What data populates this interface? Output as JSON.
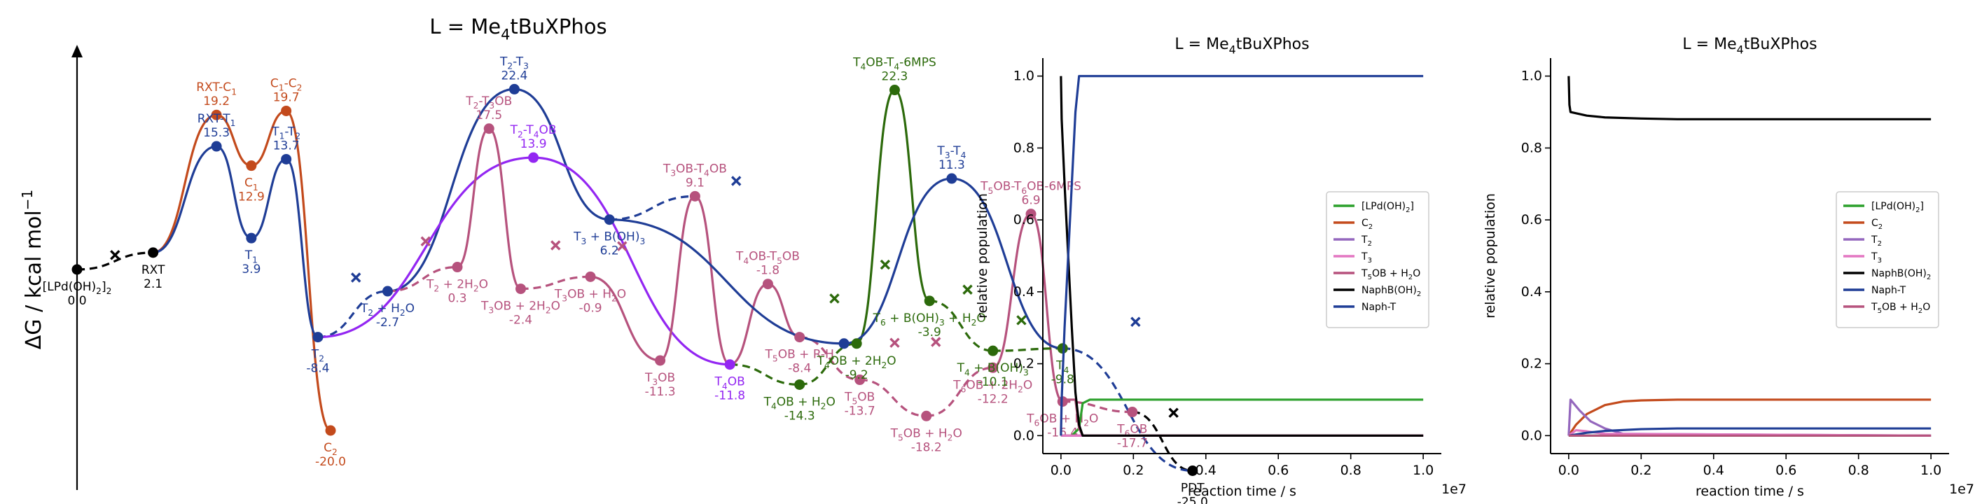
{
  "figure": {
    "title_main": "L = Me4tBuXPhos",
    "title_mid": "L = Me4tBuXPhos",
    "title_right": "L = Me4tBuXPhos"
  },
  "chart_data": [
    {
      "type": "line",
      "title": "L = Me4tBuXPhos",
      "ylabel": "ΔG / kcal mol−1",
      "xlabel": "",
      "axes": {
        "x_visible": false,
        "y_ticks": false
      },
      "ylim": [
        -27,
        35
      ],
      "colors": {
        "orange": "#c34a1c",
        "blue": "#1f3d96",
        "purple": "#9326f2",
        "pink": "#b6527d",
        "green": "#2c6a0b",
        "black": "#000000"
      },
      "points": [
        {
          "id": "LPd",
          "name": "[LPd(OH)2]2",
          "value": 0.0,
          "x": 1.0,
          "kind": "min",
          "color": "black"
        },
        {
          "id": "RXT",
          "name": "RXT",
          "value": 2.1,
          "x": 2.2,
          "kind": "min",
          "color": "black"
        },
        {
          "id": "RXTC1",
          "name": "RXT-C1",
          "value": 19.2,
          "x": 3.2,
          "kind": "ts",
          "color": "orange"
        },
        {
          "id": "C1",
          "name": "C1",
          "value": 12.9,
          "x": 3.75,
          "kind": "min",
          "color": "orange"
        },
        {
          "id": "C1C2",
          "name": "C1-C2",
          "value": 19.7,
          "x": 4.3,
          "kind": "ts",
          "color": "orange"
        },
        {
          "id": "C2",
          "name": "C2",
          "value": -20.0,
          "x": 5.0,
          "kind": "min",
          "color": "orange"
        },
        {
          "id": "RXTT1",
          "name": "RXT-T1",
          "value": 15.3,
          "x": 3.2,
          "kind": "ts",
          "color": "blue"
        },
        {
          "id": "T1",
          "name": "T1",
          "value": 3.9,
          "x": 3.75,
          "kind": "min",
          "color": "blue"
        },
        {
          "id": "T1T2",
          "name": "T1-T2",
          "value": 13.7,
          "x": 4.3,
          "kind": "ts",
          "color": "blue"
        },
        {
          "id": "T2",
          "name": "T2",
          "value": -8.4,
          "x": 4.8,
          "kind": "min",
          "color": "blue"
        },
        {
          "id": "T2H2O",
          "name": "T2 + H2O",
          "value": -2.7,
          "x": 5.9,
          "kind": "min",
          "color": "blue"
        },
        {
          "id": "T2T3",
          "name": "T2-T3",
          "value": 22.4,
          "x": 7.9,
          "kind": "ts",
          "color": "blue"
        },
        {
          "id": "T3BOH",
          "name": "T3 + B(OH)3",
          "value": 6.2,
          "x": 9.4,
          "kind": "min",
          "color": "blue"
        },
        {
          "id": "T2T4OB",
          "name": "T2-T4OB",
          "value": 13.9,
          "x": 8.2,
          "kind": "ts",
          "color": "purple"
        },
        {
          "id": "T4OB",
          "name": "T4OB",
          "value": -11.8,
          "x": 11.3,
          "kind": "min",
          "color": "purple"
        },
        {
          "id": "T22H2O",
          "name": "T2 + 2H2O",
          "value": 0.3,
          "x": 7.0,
          "kind": "min",
          "color": "pink"
        },
        {
          "id": "T2T3OB",
          "name": "T2-T3OB",
          "value": 17.5,
          "x": 7.5,
          "kind": "ts",
          "color": "pink"
        },
        {
          "id": "T3OB2H2O",
          "name": "T3OB + 2H2O",
          "value": -2.4,
          "x": 8.0,
          "kind": "min",
          "color": "pink"
        },
        {
          "id": "T3OBH2O",
          "name": "T3OB + H2O",
          "value": -0.9,
          "x": 9.1,
          "kind": "min",
          "color": "pink"
        },
        {
          "id": "T3OB",
          "name": "T3OB",
          "value": -11.3,
          "x": 10.2,
          "kind": "min",
          "color": "pink"
        },
        {
          "id": "T3OBT4OB",
          "name": "T3OB-T4OB",
          "value": 9.1,
          "x": 10.75,
          "kind": "ts",
          "color": "pink"
        },
        {
          "id": "T4OBT5OB",
          "name": "T4OB-T5OB",
          "value": -1.8,
          "x": 11.9,
          "kind": "ts",
          "color": "pink"
        },
        {
          "id": "T5OBRH",
          "name": "T5OB + R-H",
          "value": -8.4,
          "x": 12.4,
          "kind": "min",
          "color": "pink"
        },
        {
          "id": "T5OB",
          "name": "T5OB",
          "value": -13.7,
          "x": 13.35,
          "kind": "min",
          "color": "pink"
        },
        {
          "id": "T5OBH2O",
          "name": "T5OB + H2O",
          "value": -18.2,
          "x": 14.4,
          "kind": "min",
          "color": "pink"
        },
        {
          "id": "T6OB2H2O",
          "name": "T6OB + 2H2O",
          "value": -12.2,
          "x": 15.45,
          "kind": "min",
          "color": "pink"
        },
        {
          "id": "T5OBT6OB",
          "name": "T5OB-T6OB-6MPS",
          "value": 6.9,
          "x": 16.05,
          "kind": "ts",
          "color": "pink"
        },
        {
          "id": "T6OBH2O",
          "name": "T6OB + H2O",
          "value": -16.4,
          "x": 16.55,
          "kind": "min",
          "color": "pink"
        },
        {
          "id": "T6OB",
          "name": "T6OB",
          "value": -17.7,
          "x": 17.65,
          "kind": "min",
          "color": "pink"
        },
        {
          "id": "T4OBH2O",
          "name": "T4OB + H2O",
          "value": -14.3,
          "x": 12.4,
          "kind": "min",
          "color": "green"
        },
        {
          "id": "T4OB2H2O",
          "name": "T4OB + 2H2O",
          "value": -9.2,
          "x": 13.3,
          "kind": "min",
          "color": "green"
        },
        {
          "id": "T4OBT4",
          "name": "T4OB-T4-6MPS",
          "value": 22.3,
          "x": 13.9,
          "kind": "ts",
          "color": "green"
        },
        {
          "id": "T4BOH",
          "name": "T4 + B(OH)3",
          "value": -10.1,
          "x": 15.45,
          "kind": "min",
          "color": "green"
        },
        {
          "id": "T6BOHH2O",
          "name": "T6 + B(OH)3 + H2O",
          "value": -3.9,
          "x": 14.45,
          "kind": "min",
          "color": "green"
        },
        {
          "id": "T4",
          "name": "T4",
          "value": -9.8,
          "x": 16.55,
          "kind": "min",
          "color": "green"
        },
        {
          "id": "T6",
          "name": "",
          "value": -9.2,
          "x": 13.1,
          "kind": "min",
          "color": "blue"
        },
        {
          "id": "T3T4",
          "name": "T3-T4",
          "value": 11.3,
          "x": 14.8,
          "kind": "ts",
          "color": "blue"
        },
        {
          "id": "PDT",
          "name": "PDT",
          "value": -25.0,
          "x": 18.6,
          "kind": "min",
          "color": "black"
        }
      ]
    },
    {
      "type": "line",
      "title": "L = Me4tBuXPhos",
      "xlabel": "reaction time / s",
      "ylabel": "relative population",
      "x_offset_label": "1e7",
      "xlim": [
        -0.05,
        1.05
      ],
      "ylim": [
        -0.05,
        1.05
      ],
      "xticks": [
        "0.0",
        "0.2",
        "0.4",
        "0.6",
        "0.8",
        "1.0"
      ],
      "yticks": [
        "0.0",
        "0.2",
        "0.4",
        "0.6",
        "0.8",
        "1.0"
      ],
      "legend_position": "center-right",
      "series": [
        {
          "name": "[LPd(OH)2]",
          "color": "#2ca02c",
          "x": [
            0,
            0.03,
            0.05,
            0.06,
            0.08,
            1.0
          ],
          "y": [
            0,
            0,
            0.02,
            0.09,
            0.1,
            0.1
          ]
        },
        {
          "name": "C2",
          "color": "#c34a1c",
          "x": [
            0,
            1.0
          ],
          "y": [
            0,
            0
          ]
        },
        {
          "name": "T2",
          "color": "#9467bd",
          "x": [
            0,
            1.0
          ],
          "y": [
            0,
            0
          ]
        },
        {
          "name": "T3",
          "color": "#e377c2",
          "x": [
            0,
            1.0
          ],
          "y": [
            0,
            0
          ]
        },
        {
          "name": "T5OB + H2O",
          "color": "#b6527d",
          "x": [
            0,
            0.04,
            0.05,
            0.06,
            1.0
          ],
          "y": [
            0.1,
            0.1,
            0.02,
            0,
            0
          ]
        },
        {
          "name": "NaphB(OH)2",
          "color": "#000000",
          "x": [
            0,
            0.002,
            0.01,
            0.02,
            0.03,
            0.04,
            0.05,
            0.06,
            1.0
          ],
          "y": [
            1.0,
            0.88,
            0.7,
            0.5,
            0.3,
            0.12,
            0.03,
            0,
            0
          ]
        },
        {
          "name": "Naph-T",
          "color": "#1f3d96",
          "x": [
            0,
            0.002,
            0.01,
            0.02,
            0.03,
            0.04,
            0.05,
            1.0
          ],
          "y": [
            0,
            0.1,
            0.3,
            0.5,
            0.7,
            0.9,
            1.0,
            1.0
          ]
        }
      ]
    },
    {
      "type": "line",
      "title": "L = Me4tBuXPhos",
      "xlabel": "reaction time / s",
      "ylabel": "relative population",
      "x_offset_label": "1e7",
      "xlim": [
        -0.05,
        1.05
      ],
      "ylim": [
        -0.05,
        1.05
      ],
      "xticks": [
        "0.0",
        "0.2",
        "0.4",
        "0.6",
        "0.8",
        "1.0"
      ],
      "yticks": [
        "0.0",
        "0.2",
        "0.4",
        "0.6",
        "0.8",
        "1.0"
      ],
      "legend_position": "center-right",
      "series": [
        {
          "name": "[LPd(OH)2]",
          "color": "#2ca02c",
          "x": [
            0,
            1.0
          ],
          "y": [
            0,
            0
          ]
        },
        {
          "name": "C2",
          "color": "#c34a1c",
          "x": [
            0,
            0.02,
            0.05,
            0.1,
            0.15,
            0.2,
            0.3,
            0.5,
            1.0
          ],
          "y": [
            0,
            0.03,
            0.06,
            0.085,
            0.095,
            0.098,
            0.1,
            0.1,
            0.1
          ]
        },
        {
          "name": "T2",
          "color": "#9467bd",
          "x": [
            0,
            0.005,
            0.03,
            0.06,
            0.1,
            0.15,
            1.0
          ],
          "y": [
            0,
            0.1,
            0.07,
            0.04,
            0.02,
            0.005,
            0
          ]
        },
        {
          "name": "T3",
          "color": "#e377c2",
          "x": [
            0,
            0.02,
            0.05,
            0.1,
            1.0
          ],
          "y": [
            0,
            0.015,
            0.012,
            0.005,
            0
          ]
        },
        {
          "name": "NaphB(OH)2",
          "color": "#000000",
          "x": [
            0,
            0.002,
            0.005,
            0.05,
            0.1,
            0.2,
            0.3,
            0.5,
            1.0
          ],
          "y": [
            1.0,
            0.92,
            0.9,
            0.89,
            0.885,
            0.882,
            0.88,
            0.88,
            0.88
          ]
        },
        {
          "name": "Naph-T",
          "color": "#1f3d96",
          "x": [
            0,
            0.05,
            0.1,
            0.2,
            0.3,
            1.0
          ],
          "y": [
            0,
            0.008,
            0.013,
            0.018,
            0.02,
            0.02
          ]
        },
        {
          "name": "T5OB + H2O",
          "color": "#b6527d",
          "x": [
            0,
            1.0
          ],
          "y": [
            0,
            0
          ]
        }
      ]
    }
  ]
}
